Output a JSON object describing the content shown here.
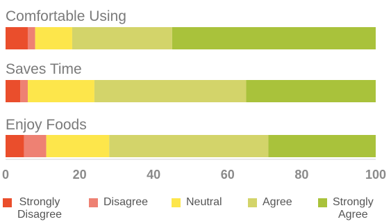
{
  "chart_data": {
    "type": "bar",
    "orientation": "horizontal",
    "stacked": true,
    "categories": [
      "Comfortable Using",
      "Saves Time",
      "Enjoy Foods"
    ],
    "series": [
      {
        "name": "Strongly Disagree",
        "values": [
          6,
          4,
          5
        ],
        "color": "#ea4e2c"
      },
      {
        "name": "Disagree",
        "values": [
          2,
          2,
          6
        ],
        "color": "#ee8173"
      },
      {
        "name": "Neutral",
        "values": [
          10,
          18,
          17
        ],
        "color": "#fde64b"
      },
      {
        "name": "Agree",
        "values": [
          27,
          41,
          43
        ],
        "color": "#d3d46a"
      },
      {
        "name": "Strongly Agree",
        "values": [
          55,
          35,
          29
        ],
        "color": "#a9c23b"
      }
    ],
    "xlim": [
      0,
      100
    ],
    "xticks": [
      0,
      20,
      40,
      60,
      80,
      100
    ],
    "grid": false,
    "legend_position": "bottom"
  },
  "legend": {
    "items": [
      {
        "line1": "Strongly",
        "line2": "Disagree",
        "color": "#ea4e2c"
      },
      {
        "line1": "Disagree",
        "line2": "",
        "color": "#ee8173"
      },
      {
        "line1": "Neutral",
        "line2": "",
        "color": "#fde64b"
      },
      {
        "line1": "Agree",
        "line2": "",
        "color": "#d3d46a"
      },
      {
        "line1": "Strongly",
        "line2": "Agree",
        "color": "#a9c23b"
      }
    ]
  }
}
